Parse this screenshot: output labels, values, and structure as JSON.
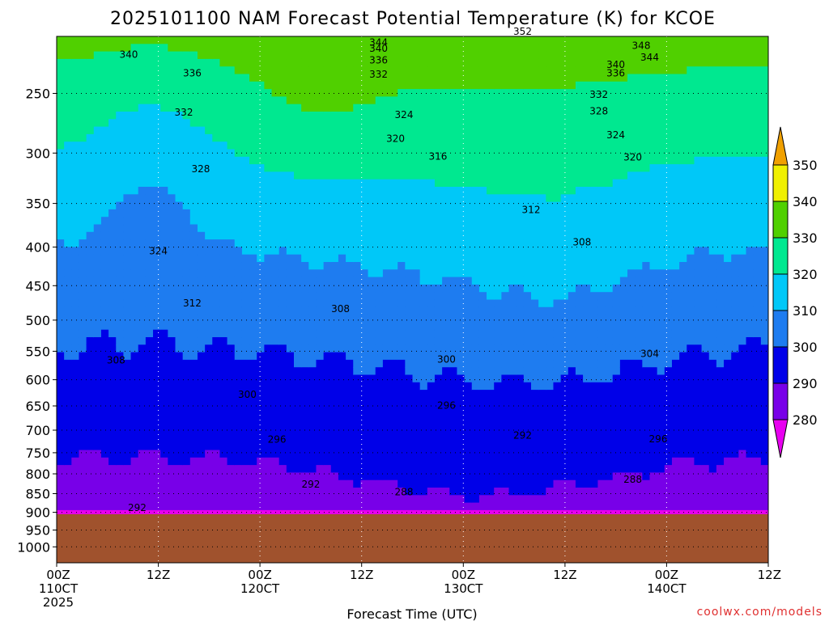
{
  "chart_data": {
    "type": "contour",
    "title": "2025101100 NAM Forecast Potential Temperature (K) for KCOE",
    "xlabel": "Forecast Time (UTC)",
    "ylabel": "",
    "y_axis": {
      "scale": "log",
      "inverted": true,
      "ticks": [
        "250",
        "300",
        "350",
        "400",
        "450",
        "500",
        "550",
        "600",
        "650",
        "700",
        "750",
        "800",
        "850",
        "900",
        "950",
        "1000"
      ],
      "ylim": [
        210,
        1050
      ]
    },
    "x_axis": {
      "ticks": [
        {
          "hour": 0,
          "lines": [
            "00Z",
            "110CT",
            "2025"
          ]
        },
        {
          "hour": 12,
          "lines": [
            "12Z"
          ]
        },
        {
          "hour": 24,
          "lines": [
            "00Z",
            "120CT"
          ]
        },
        {
          "hour": 36,
          "lines": [
            "12Z"
          ]
        },
        {
          "hour": 48,
          "lines": [
            "00Z",
            "130CT"
          ]
        },
        {
          "hour": 60,
          "lines": [
            "12Z"
          ]
        },
        {
          "hour": 72,
          "lines": [
            "00Z",
            "140CT"
          ]
        },
        {
          "hour": 84,
          "lines": [
            "12Z"
          ]
        }
      ],
      "xlim": [
        0,
        84
      ]
    },
    "colorbar": {
      "levels": [
        "350",
        "340",
        "330",
        "320",
        "310",
        "300",
        "290",
        "280"
      ],
      "colors": [
        "#f0a000",
        "#f0f000",
        "#50d000",
        "#00e890",
        "#00c8f8",
        "#1e7cf0",
        "#0000e8",
        "#7800e8",
        "#e800f0"
      ]
    },
    "surface_color": "#a0522d",
    "surface_pressure_hpa": 905,
    "contour_interval_k": 2,
    "shading_interval_k": 10,
    "contour_labels": [
      {
        "value": "340",
        "hour": 8.5,
        "p": 222
      },
      {
        "value": "336",
        "hour": 16,
        "p": 235
      },
      {
        "value": "332",
        "hour": 15,
        "p": 265
      },
      {
        "value": "328",
        "hour": 17,
        "p": 315
      },
      {
        "value": "324",
        "hour": 12,
        "p": 405
      },
      {
        "value": "312",
        "hour": 16,
        "p": 475
      },
      {
        "value": "308",
        "hour": 7,
        "p": 565
      },
      {
        "value": "300",
        "hour": 22.5,
        "p": 628
      },
      {
        "value": "296",
        "hour": 26,
        "p": 720
      },
      {
        "value": "292",
        "hour": 30,
        "p": 826
      },
      {
        "value": "292",
        "hour": 9.5,
        "p": 888
      },
      {
        "value": "288",
        "hour": 41,
        "p": 846
      },
      {
        "value": "308",
        "hour": 33.5,
        "p": 483
      },
      {
        "value": "344",
        "hour": 38,
        "p": 214
      },
      {
        "value": "340",
        "hour": 38,
        "p": 218
      },
      {
        "value": "336",
        "hour": 38,
        "p": 226
      },
      {
        "value": "332",
        "hour": 38,
        "p": 236
      },
      {
        "value": "324",
        "hour": 41,
        "p": 267
      },
      {
        "value": "320",
        "hour": 40,
        "p": 287
      },
      {
        "value": "316",
        "hour": 45,
        "p": 303
      },
      {
        "value": "312",
        "hour": 56,
        "p": 357
      },
      {
        "value": "308",
        "hour": 62,
        "p": 394
      },
      {
        "value": "300",
        "hour": 46,
        "p": 564
      },
      {
        "value": "296",
        "hour": 46,
        "p": 649
      },
      {
        "value": "292",
        "hour": 55,
        "p": 711
      },
      {
        "value": "304",
        "hour": 70,
        "p": 554
      },
      {
        "value": "296",
        "hour": 71,
        "p": 719
      },
      {
        "value": "288",
        "hour": 68,
        "p": 814
      },
      {
        "value": "352",
        "hour": 55,
        "p": 207
      },
      {
        "value": "348",
        "hour": 69,
        "p": 216
      },
      {
        "value": "344",
        "hour": 70,
        "p": 224
      },
      {
        "value": "340",
        "hour": 66,
        "p": 229
      },
      {
        "value": "336",
        "hour": 66,
        "p": 235
      },
      {
        "value": "332",
        "hour": 64,
        "p": 251
      },
      {
        "value": "328",
        "hour": 64,
        "p": 264
      },
      {
        "value": "324",
        "hour": 66,
        "p": 284
      },
      {
        "value": "320",
        "hour": 68,
        "p": 304
      }
    ]
  },
  "credit": "coolwx.com/models"
}
